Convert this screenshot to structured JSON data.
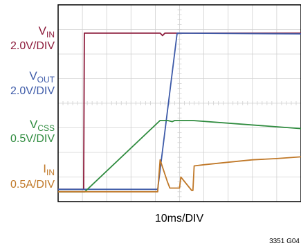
{
  "chart_data": {
    "type": "line",
    "xlabel": "10ms/DIV",
    "figure_id": "3351 G04",
    "grid": true,
    "divisions": {
      "x": 10,
      "y": 8
    },
    "time_per_div_ms": 10,
    "x_range_ms": [
      0,
      100
    ],
    "series": [
      {
        "id": "vin",
        "name_main": "V",
        "name_sub": "IN",
        "scale": "2.0V/DIV",
        "color": "#8c1a3a",
        "points_div": [
          [
            0,
            0.5
          ],
          [
            10.5,
            0.5
          ],
          [
            10.8,
            6.85
          ],
          [
            42,
            6.85
          ],
          [
            43,
            6.75
          ],
          [
            44,
            6.85
          ],
          [
            100,
            6.85
          ]
        ]
      },
      {
        "id": "vout",
        "name_main": "V",
        "name_sub": "OUT",
        "scale": "2.0V/DIV",
        "color": "#3d5aa8",
        "points_div": [
          [
            0,
            0.5
          ],
          [
            41,
            0.5
          ],
          [
            49,
            6.85
          ],
          [
            100,
            6.82
          ]
        ]
      },
      {
        "id": "vcss",
        "name_main": "V",
        "name_sub": "CSS",
        "scale": "0.5V/DIV",
        "color": "#2e8b3e",
        "points_div": [
          [
            0,
            0.4
          ],
          [
            11,
            0.4
          ],
          [
            42,
            3.3
          ],
          [
            45,
            3.3
          ],
          [
            47,
            3.25
          ],
          [
            48,
            3.3
          ],
          [
            55,
            3.3
          ],
          [
            100,
            2.97
          ]
        ]
      },
      {
        "id": "iin",
        "name_main": "I",
        "name_sub": "IN",
        "scale": "0.5A/DIV",
        "color": "#c07828",
        "points_div": [
          [
            0,
            0.4
          ],
          [
            41,
            0.4
          ],
          [
            42,
            1.7
          ],
          [
            43,
            1.4
          ],
          [
            45,
            0.8
          ],
          [
            46,
            0.55
          ],
          [
            50,
            0.55
          ],
          [
            50.5,
            1.0
          ],
          [
            55,
            0.45
          ],
          [
            55.5,
            0.45
          ],
          [
            56,
            1.45
          ],
          [
            60,
            1.5
          ],
          [
            70,
            1.6
          ],
          [
            80,
            1.7
          ],
          [
            90,
            1.75
          ],
          [
            100,
            1.82
          ]
        ]
      }
    ]
  }
}
